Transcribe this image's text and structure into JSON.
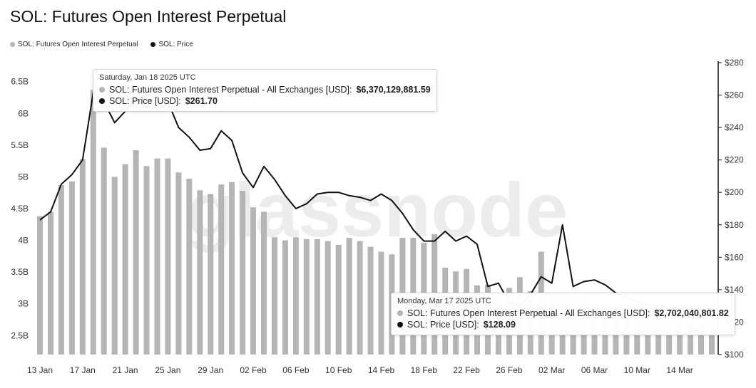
{
  "title": "SOL: Futures Open Interest Perpetual",
  "legend": [
    {
      "label": "SOL: Futures Open Interest Perpetual",
      "color": "#b5b5b5"
    },
    {
      "label": "SOL: Price",
      "color": "#111111"
    }
  ],
  "watermark": "glassnode",
  "tooltips": [
    {
      "date": "Saturday, Jan 18 2025 UTC",
      "oi_label": "SOL: Futures Open Interest Perpetual - All Exchanges [USD]:",
      "oi_value": "$6,370,129,881.59",
      "price_label": "SOL: Price [USD]:",
      "price_value": "$261.70"
    },
    {
      "date": "Monday, Mar 17 2025 UTC",
      "oi_label": "SOL: Futures Open Interest Perpetual - All Exchanges [USD]:",
      "oi_value": "$2,702,040,801.82",
      "price_label": "SOL: Price [USD]:",
      "price_value": "$128.09"
    }
  ],
  "chart_data": {
    "type": "bar+line",
    "x_start": "2025-01-13",
    "x_ticks": [
      "13 Jan",
      "17 Jan",
      "21 Jan",
      "25 Jan",
      "29 Jan",
      "02 Feb",
      "06 Feb",
      "10 Feb",
      "14 Feb",
      "18 Feb",
      "22 Feb",
      "26 Feb",
      "02 Mar",
      "06 Mar",
      "10 Mar",
      "14 Mar"
    ],
    "y_left": {
      "ticks": [
        "2.5B",
        "3B",
        "3.5B",
        "4B",
        "4.5B",
        "5B",
        "5.5B",
        "6B",
        "6.5B"
      ],
      "range": [
        2.2,
        6.8
      ],
      "unit": "B USD"
    },
    "y_right": {
      "ticks": [
        "$100",
        "$120",
        "$140",
        "$160",
        "$180",
        "$200",
        "$220",
        "$240",
        "$260",
        "$280"
      ],
      "range": [
        100,
        280
      ]
    },
    "series": [
      {
        "name": "SOL: Futures Open Interest Perpetual",
        "type": "bar",
        "color": "#b5b5b5",
        "axis": "left",
        "values": [
          4.38,
          4.45,
          4.87,
          4.93,
          5.28,
          6.37,
          5.46,
          5.0,
          5.2,
          5.42,
          5.17,
          5.29,
          5.29,
          5.07,
          4.97,
          4.79,
          4.73,
          4.88,
          4.92,
          4.78,
          4.52,
          4.45,
          4.05,
          4.0,
          4.05,
          4.02,
          4.02,
          3.99,
          3.93,
          4.04,
          3.99,
          3.9,
          3.82,
          3.78,
          4.04,
          4.04,
          3.96,
          4.1,
          3.57,
          3.51,
          3.55,
          3.29,
          3.3,
          3.12,
          3.25,
          3.42,
          3.2,
          3.82,
          3.12,
          3.06,
          3.12,
          3.07,
          2.95,
          2.9,
          2.85,
          2.82,
          2.8,
          2.78,
          2.76,
          2.74,
          2.72,
          2.71,
          2.7,
          2.7
        ]
      },
      {
        "name": "SOL: Price",
        "type": "line",
        "color": "#111111",
        "axis": "right",
        "values": [
          183,
          188,
          205,
          211,
          220,
          261.7,
          256,
          243,
          250,
          258,
          260,
          259,
          256,
          240,
          234,
          226,
          227,
          238,
          232,
          212,
          203,
          216,
          208,
          198,
          190,
          193,
          199,
          200,
          200,
          198,
          197,
          195,
          199,
          195,
          187,
          177,
          170,
          170,
          176,
          170,
          173,
          168,
          142,
          144,
          132,
          130,
          137,
          148,
          144,
          180,
          142,
          145,
          146,
          143,
          138,
          135,
          133,
          131,
          130,
          129,
          129,
          128.5,
          128.2,
          128.09
        ]
      }
    ]
  }
}
